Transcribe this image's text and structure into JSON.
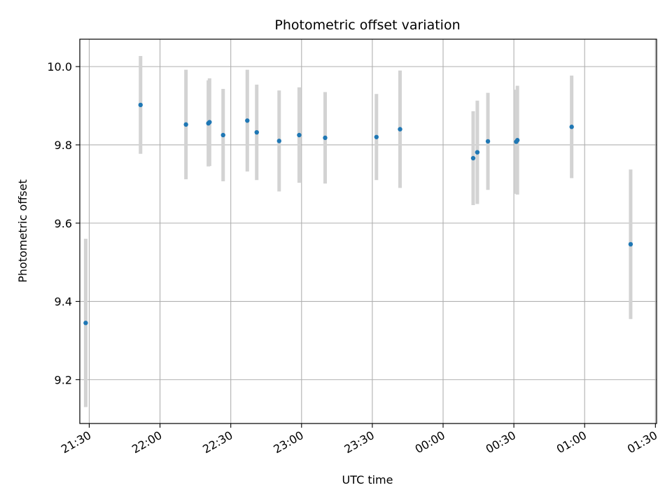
{
  "chart_data": {
    "type": "scatter",
    "title": "Photometric offset variation",
    "xlabel": "UTC time",
    "ylabel": "Photometric offset",
    "x_axis": "time",
    "xlim": [
      "21:26",
      "01:30:30"
    ],
    "ylim": [
      9.088,
      10.07
    ],
    "grid": true,
    "x_ticks": [
      "21:30",
      "22:00",
      "22:30",
      "23:00",
      "23:30",
      "00:00",
      "00:30",
      "01:00",
      "01:30"
    ],
    "y_ticks": [
      9.2,
      9.4,
      9.6,
      9.8,
      10.0
    ],
    "y_tick_labels": [
      "9.2",
      "9.4",
      "9.6",
      "9.8",
      "10.0"
    ],
    "point_color": "#1f77b4",
    "errorbar_color": "#d3d3d3",
    "points": [
      {
        "x": "21:28:30",
        "y": 9.345,
        "err": 0.215
      },
      {
        "x": "21:51:45",
        "y": 9.902,
        "err": 0.125
      },
      {
        "x": "22:11:00",
        "y": 9.852,
        "err": 0.14
      },
      {
        "x": "22:20:30",
        "y": 9.855,
        "err": 0.11
      },
      {
        "x": "22:21:00",
        "y": 9.858,
        "err": 0.112
      },
      {
        "x": "22:26:45",
        "y": 9.825,
        "err": 0.118
      },
      {
        "x": "22:37:00",
        "y": 9.862,
        "err": 0.13
      },
      {
        "x": "22:41:00",
        "y": 9.832,
        "err": 0.122
      },
      {
        "x": "22:50:30",
        "y": 9.81,
        "err": 0.129
      },
      {
        "x": "22:59:00",
        "y": 9.825,
        "err": 0.122
      },
      {
        "x": "23:10:00",
        "y": 9.818,
        "err": 0.117
      },
      {
        "x": "23:31:45",
        "y": 9.82,
        "err": 0.11
      },
      {
        "x": "23:41:45",
        "y": 9.84,
        "err": 0.15
      },
      {
        "x": "00:12:45",
        "y": 9.766,
        "err": 0.12
      },
      {
        "x": "00:14:30",
        "y": 9.781,
        "err": 0.132
      },
      {
        "x": "00:19:00",
        "y": 9.809,
        "err": 0.124
      },
      {
        "x": "00:31:00",
        "y": 9.808,
        "err": 0.133
      },
      {
        "x": "00:31:30",
        "y": 9.812,
        "err": 0.139
      },
      {
        "x": "00:54:30",
        "y": 9.846,
        "err": 0.131
      },
      {
        "x": "01:19:30",
        "y": 9.546,
        "err": 0.191
      }
    ]
  }
}
